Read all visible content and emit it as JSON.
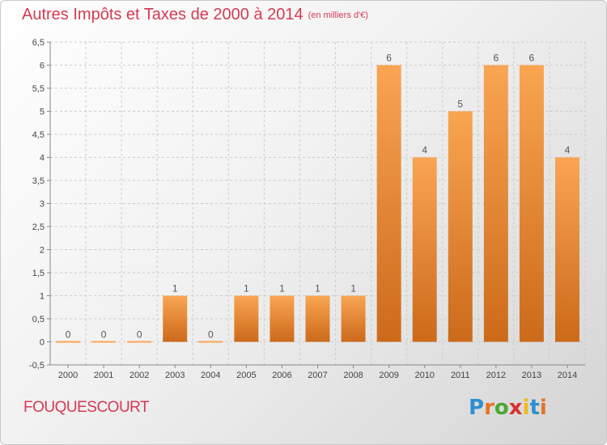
{
  "title": "Autres Impôts et Taxes de 2000 à 2014",
  "subtitle": "(en milliers d'€)",
  "commune": "FOUQUESCOURT",
  "logo": {
    "text": "Proxiti",
    "letter_colors": [
      "#2e8fd0",
      "#e9731f",
      "#4aa832",
      "#d9312f",
      "#f0b819",
      "#2e8fd0",
      "#e9731f"
    ]
  },
  "colors": {
    "bar_top": "#f9a552",
    "bar_bottom": "#cc6a1a",
    "grid": "#cccccc",
    "axis": "#888888"
  },
  "chart_data": {
    "type": "bar",
    "title": "Autres Impôts et Taxes de 2000 à 2014",
    "categories": [
      "2000",
      "2001",
      "2002",
      "2003",
      "2004",
      "2005",
      "2006",
      "2007",
      "2008",
      "2009",
      "2010",
      "2011",
      "2012",
      "2013",
      "2014"
    ],
    "values": [
      0,
      0,
      0,
      1,
      0,
      1,
      1,
      1,
      1,
      6,
      4,
      5,
      6,
      6,
      4
    ],
    "data_labels": [
      "0",
      "0",
      "0",
      "1",
      "0",
      "1",
      "1",
      "1",
      "1",
      "6",
      "4",
      "5",
      "6",
      "6",
      "4"
    ],
    "ylim": [
      -0.5,
      6.5
    ],
    "yticks": [
      -0.5,
      0,
      0.5,
      1,
      1.5,
      2,
      2.5,
      3,
      3.5,
      4,
      4.5,
      5,
      5.5,
      6,
      6.5
    ],
    "ytick_labels": [
      "-0,5",
      "0",
      "0,5",
      "1",
      "1,5",
      "2",
      "2,5",
      "3",
      "3,5",
      "4",
      "4,5",
      "5",
      "5,5",
      "6",
      "6,5"
    ],
    "grid": true,
    "legend": "none"
  }
}
